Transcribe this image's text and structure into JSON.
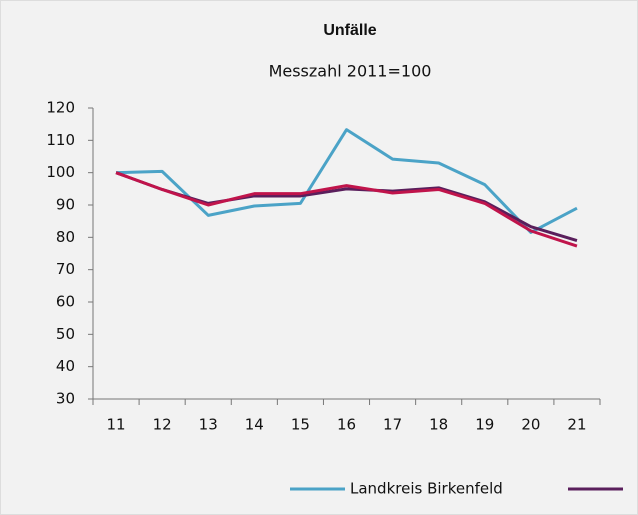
{
  "chart_data": {
    "type": "line",
    "title": "Unfälle",
    "subtitle": "Messzahl 2011=100",
    "categories": [
      "11",
      "12",
      "13",
      "14",
      "15",
      "16",
      "17",
      "18",
      "19",
      "20",
      "21"
    ],
    "series": [
      {
        "name": "Landkreis Birkenfeld",
        "color": "#4ba3c7",
        "values": [
          100,
          100.4,
          86.8,
          89.7,
          90.5,
          113.3,
          104.2,
          103,
          96.3,
          81.5,
          89
        ]
      },
      {
        "color": "#5a1f5c",
        "values": [
          100,
          94.8,
          90.5,
          92.8,
          92.8,
          95,
          94.3,
          95.3,
          91,
          83.3,
          79
        ]
      },
      {
        "color": "#c0144b",
        "values": [
          100,
          94.8,
          90,
          93.5,
          93.5,
          96,
          93.7,
          94.8,
          90.5,
          82,
          77.3
        ]
      }
    ],
    "ylim": [
      30,
      120
    ],
    "yticks": [
      30,
      40,
      50,
      60,
      70,
      80,
      90,
      100,
      110,
      120
    ],
    "grid": false
  }
}
